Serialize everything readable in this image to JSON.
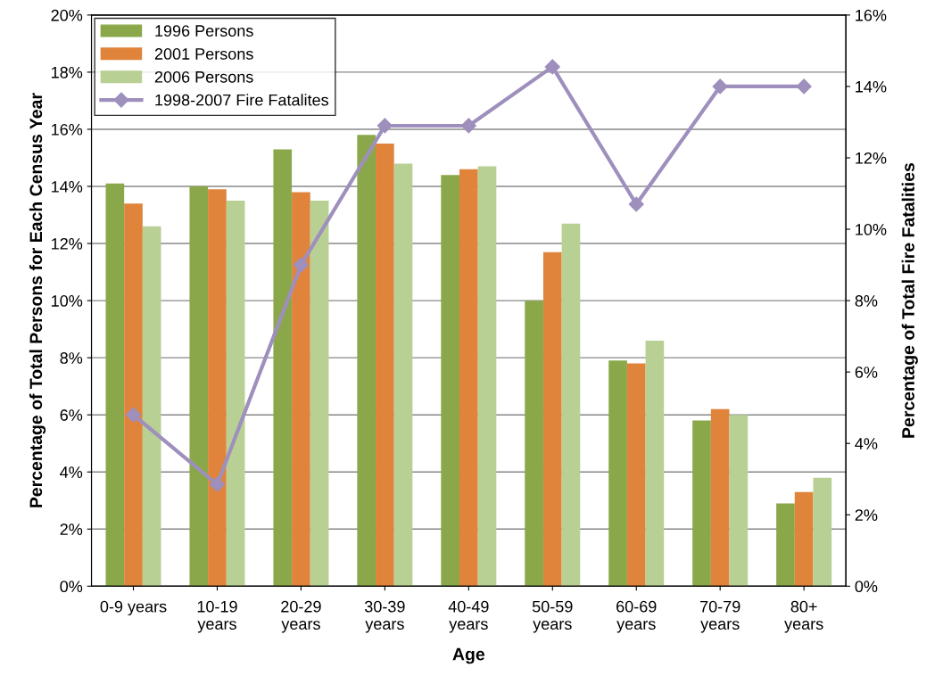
{
  "chart_data": {
    "type": "bar",
    "xlabel": "Age",
    "ylabel": "Percentage of Total Persons for Each Census Year",
    "y2label": "Percentage of Total Fire Fatalities",
    "categories": [
      "0-9 years",
      "10-19\nyears",
      "20-29\nyears",
      "30-39\nyears",
      "40-49\nyears",
      "50-59\nyears",
      "60-69\nyears",
      "70-79\nyears",
      "80+\nyears"
    ],
    "series": [
      {
        "name": "1996 Persons",
        "color": "#8aa84a",
        "values": [
          14.1,
          14.0,
          15.3,
          15.8,
          14.4,
          10.0,
          7.9,
          5.8,
          2.9
        ]
      },
      {
        "name": "2001 Persons",
        "color": "#e0843b",
        "values": [
          13.4,
          13.9,
          13.8,
          15.5,
          14.6,
          11.7,
          7.8,
          6.2,
          3.3
        ]
      },
      {
        "name": "2006 Persons",
        "color": "#b9d095",
        "values": [
          12.6,
          13.5,
          13.5,
          14.8,
          14.7,
          12.7,
          8.6,
          6.0,
          3.8
        ]
      },
      {
        "name": "1998-2007 Fire Fatalites",
        "color": "#9e8fbd",
        "type": "line",
        "axis": "y2",
        "marker": "diamond",
        "values": [
          4.8,
          2.85,
          9.0,
          12.9,
          12.9,
          14.55,
          10.7,
          14.0,
          14.0
        ]
      }
    ],
    "ylim": [
      0,
      20
    ],
    "yticks": [
      {
        "value": 0,
        "label": "0%"
      },
      {
        "value": 2,
        "label": "2%"
      },
      {
        "value": 4,
        "label": "4%"
      },
      {
        "value": 6,
        "label": "6%"
      },
      {
        "value": 8,
        "label": "8%"
      },
      {
        "value": 10,
        "label": "10%"
      },
      {
        "value": 12,
        "label": "12%"
      },
      {
        "value": 14,
        "label": "14%"
      },
      {
        "value": 16,
        "label": "16%"
      },
      {
        "value": 18,
        "label": "18%"
      },
      {
        "value": 20,
        "label": "20%"
      }
    ],
    "y2lim": [
      0,
      16
    ],
    "y2ticks": [
      {
        "value": 0,
        "label": "0%"
      },
      {
        "value": 2,
        "label": "2%"
      },
      {
        "value": 4,
        "label": "4%"
      },
      {
        "value": 6,
        "label": "6%"
      },
      {
        "value": 8,
        "label": "8%"
      },
      {
        "value": 10,
        "label": "10%"
      },
      {
        "value": 12,
        "label": "12%"
      },
      {
        "value": 14,
        "label": "14%"
      },
      {
        "value": 16,
        "label": "16%"
      }
    ],
    "grid": "y",
    "legend": "top left"
  }
}
